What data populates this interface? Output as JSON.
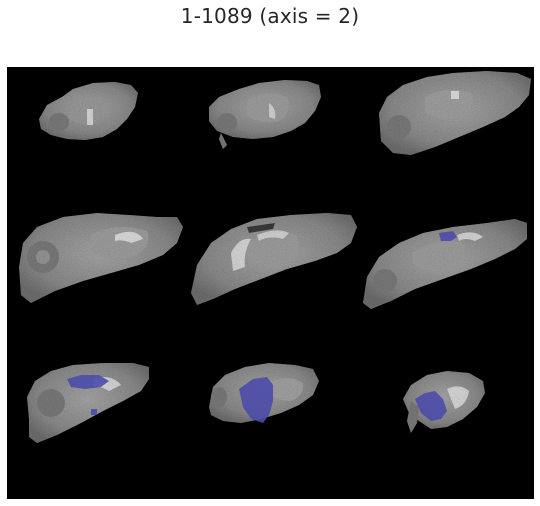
{
  "figure": {
    "title": "1-1089 (axis = 2)"
  },
  "montage": {
    "rows": 3,
    "cols": 3,
    "background_color": "#000000",
    "tissue_color": "#8c8c8c",
    "overlay_color": "#4b4ba8",
    "slices": [
      {
        "index": 1,
        "has_overlay": false
      },
      {
        "index": 2,
        "has_overlay": false
      },
      {
        "index": 3,
        "has_overlay": false
      },
      {
        "index": 4,
        "has_overlay": false
      },
      {
        "index": 5,
        "has_overlay": false
      },
      {
        "index": 6,
        "has_overlay": true
      },
      {
        "index": 7,
        "has_overlay": true
      },
      {
        "index": 8,
        "has_overlay": true
      },
      {
        "index": 9,
        "has_overlay": true
      }
    ]
  }
}
